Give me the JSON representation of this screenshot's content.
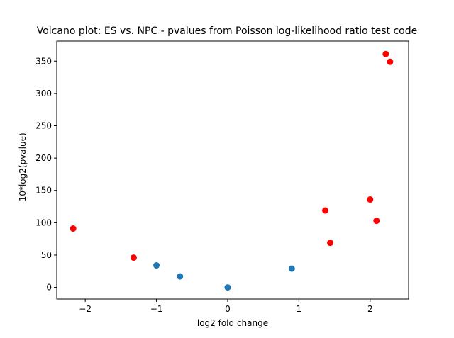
{
  "chart_data": {
    "type": "scatter",
    "title": "Volcano plot: ES vs. NPC - pvalues from Poisson log-likelihood ratio test code",
    "xlabel": "log2 fold change",
    "ylabel": "-10*log2(pvalue)",
    "xlim": [
      -2.4,
      2.54
    ],
    "ylim": [
      -18,
      381
    ],
    "xticks": [
      -2,
      -1,
      0,
      1,
      2
    ],
    "yticks": [
      0,
      50,
      100,
      150,
      200,
      250,
      300,
      350
    ],
    "grid": false,
    "series": [
      {
        "color": "#1f77b4",
        "points": [
          {
            "x": -1.0,
            "y": 34
          },
          {
            "x": -0.67,
            "y": 17
          },
          {
            "x": 0.0,
            "y": 0
          },
          {
            "x": 0.9,
            "y": 29
          }
        ]
      },
      {
        "color": "#ff0000",
        "points": [
          {
            "x": -2.17,
            "y": 91
          },
          {
            "x": -1.32,
            "y": 46
          },
          {
            "x": 1.37,
            "y": 119
          },
          {
            "x": 1.44,
            "y": 69
          },
          {
            "x": 2.0,
            "y": 136
          },
          {
            "x": 2.09,
            "y": 103
          },
          {
            "x": 2.22,
            "y": 361
          },
          {
            "x": 2.28,
            "y": 349
          }
        ]
      }
    ]
  }
}
